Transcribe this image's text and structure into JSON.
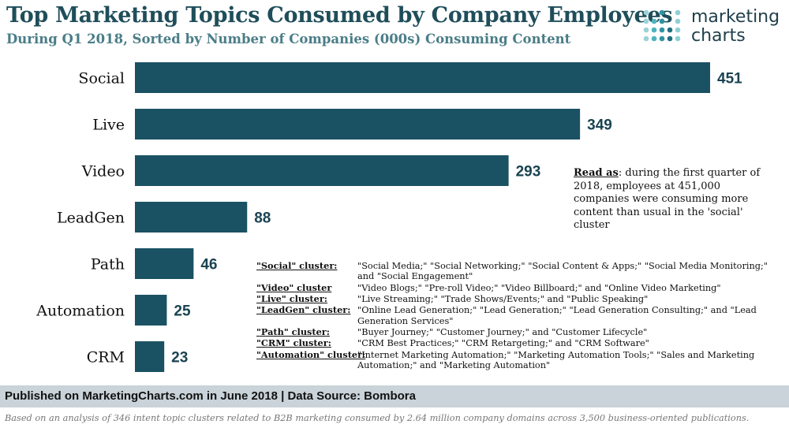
{
  "header": {
    "title": "Top Marketing Topics Consumed by Company Employees",
    "subtitle": "During Q1 2018, Sorted by Number of Companies (000s) Consuming Content"
  },
  "logo": {
    "line1": "marketing",
    "line2": "charts"
  },
  "chart_data": {
    "type": "bar",
    "orientation": "horizontal",
    "title": "Top Marketing Topics Consumed by Company Employees",
    "subtitle": "During Q1 2018, Sorted by Number of Companies (000s) Consuming Content",
    "categories": [
      "Social",
      "Live",
      "Video",
      "LeadGen",
      "Path",
      "Automation",
      "CRM"
    ],
    "values": [
      451,
      349,
      293,
      88,
      46,
      25,
      23
    ],
    "xlabel": "",
    "ylabel": "",
    "xlim": [
      0,
      451
    ],
    "grid": false,
    "bar_color": "#1a5263"
  },
  "read_as": {
    "lead": "Read as",
    "text": ": during the first quarter of 2018, employees at 451,000 companies were consuming more content than usual in the 'social' cluster"
  },
  "clusters": [
    {
      "name": "\"Social\" cluster:",
      "terms": "\"Social Media;\" \"Social Networking;\" \"Social Content & Apps;\" \"Social Media Monitoring;\" and \"Social Engagement\""
    },
    {
      "name": "\"Video\" cluster",
      "terms": "\"Video Blogs;\" \"Pre-roll Video;\" \"Video Billboard;\" and \"Online Video Marketing\""
    },
    {
      "name": "\"Live\" cluster:",
      "terms": "\"Live Streaming;\" \"Trade Shows/Events;\" and \"Public Speaking\""
    },
    {
      "name": "\"LeadGen\" cluster:",
      "terms": "\"Online Lead Generation;\" \"Lead Generation;\" \"Lead Generation Consulting;\" and \"Lead Generation Services\""
    },
    {
      "name": "\"Path\" cluster:",
      "terms": "\"Buyer Journey;\" \"Customer Journey;\" and \"Customer Lifecycle\""
    },
    {
      "name": "\"CRM\" cluster:",
      "terms": "\"CRM Best Practices;\" \"CRM Retargeting;\" and \"CRM Software\""
    },
    {
      "name": "\"Automation\" cluster:",
      "terms": "\"Internet Marketing Automation;\" \"Marketing Automation Tools;\" \"Sales and Marketing Automation;\" and \"Marketing Automation\""
    }
  ],
  "footer": {
    "published": "Published on MarketingCharts.com in June 2018 | Data Source: Bombora",
    "note": "Based on an analysis of 346 intent topic clusters related to B2B marketing consumed by 2.64 million company domains across 3,500 business-oriented publications."
  },
  "colors": {
    "bar": "#1a5263",
    "title": "#1f4e5a",
    "subtitle": "#4a7d88",
    "footer_bg": "#c9d3d9"
  }
}
